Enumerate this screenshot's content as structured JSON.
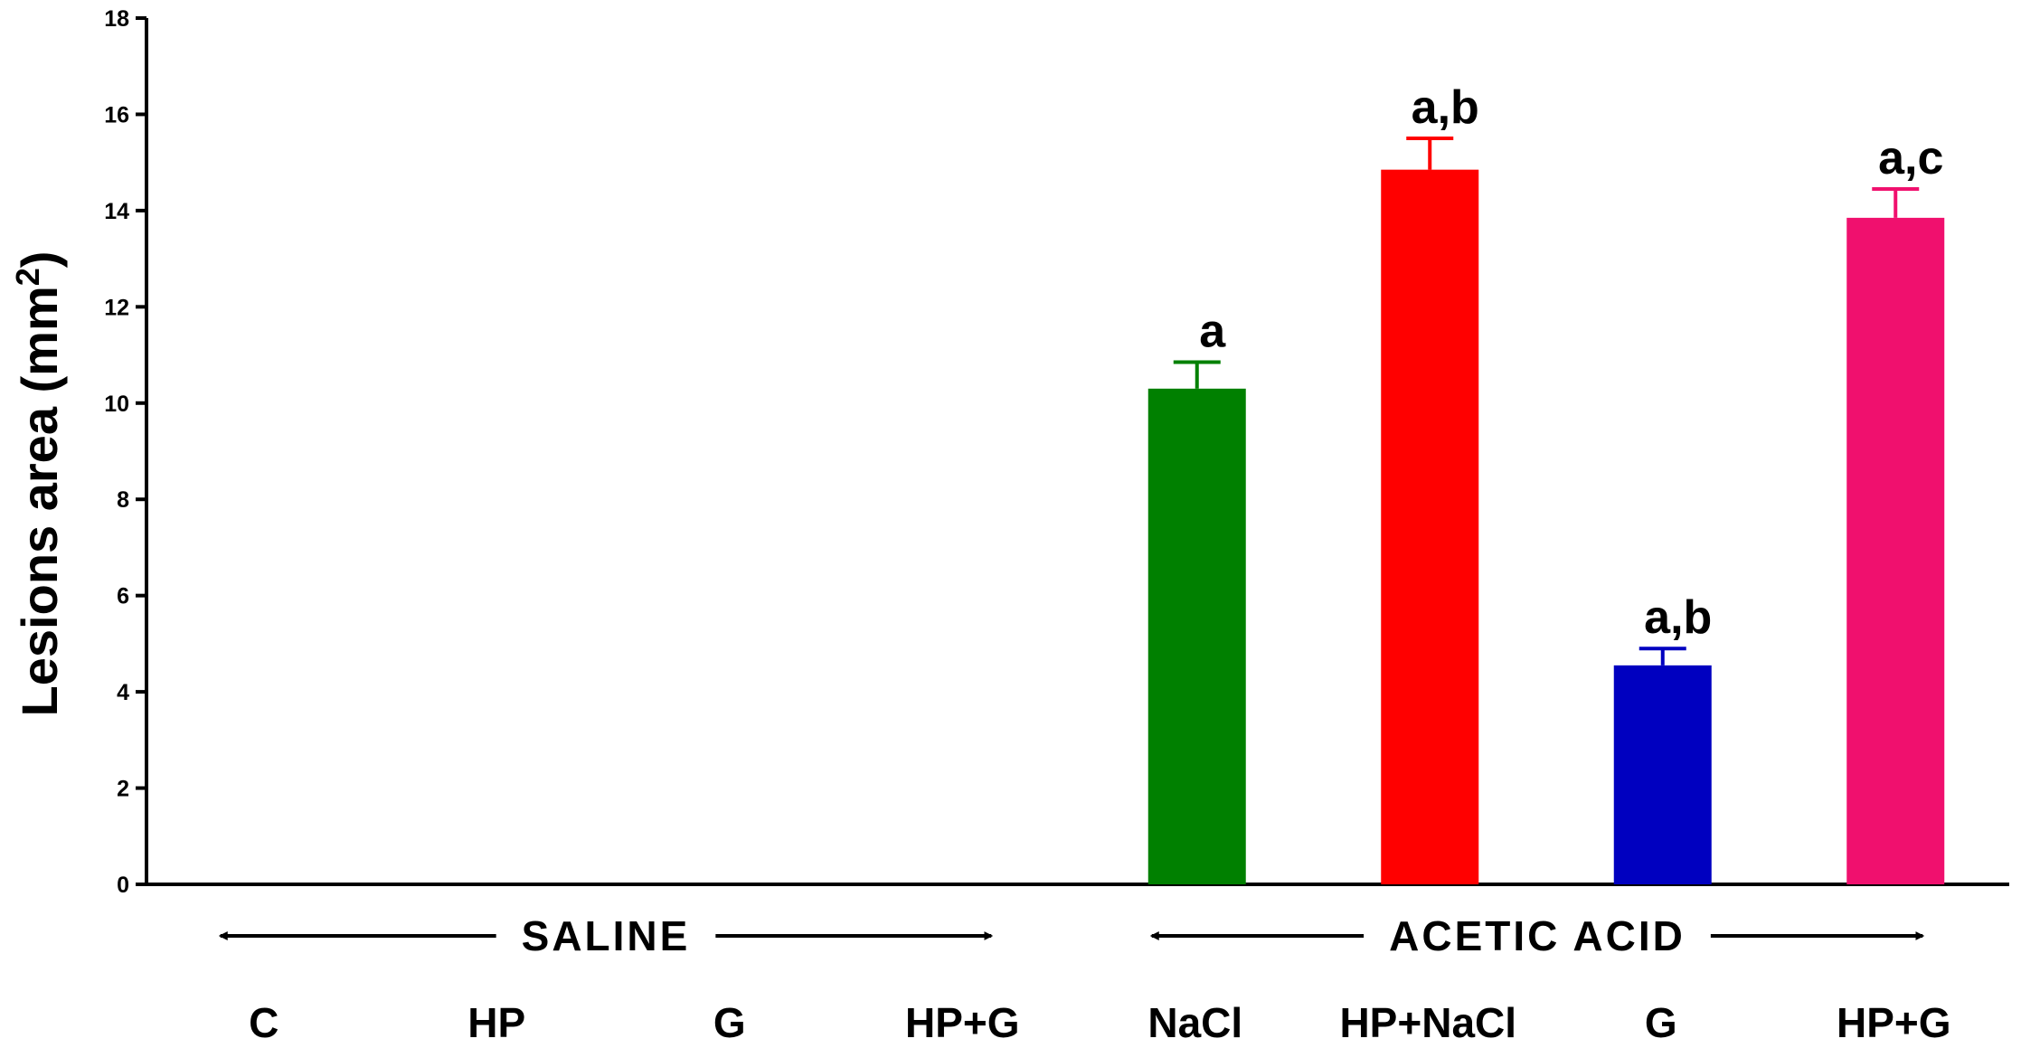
{
  "chart_data": {
    "type": "bar",
    "categories": [
      "C",
      "HP",
      "G",
      "HP+G",
      "NaCl",
      "HP+NaCl",
      "G",
      "HP+G"
    ],
    "values": [
      0,
      0,
      0,
      0,
      10.3,
      14.85,
      4.55,
      13.85
    ],
    "errors": [
      0,
      0,
      0,
      0,
      0.55,
      0.65,
      0.35,
      0.6
    ],
    "bar_colors": [
      "#000000",
      "#000000",
      "#000000",
      "#000000",
      "#008000",
      "#ff0000",
      "#0000c0",
      "#f0106e"
    ],
    "significance": [
      "",
      "",
      "",
      "",
      "a",
      "a,b",
      "a,b",
      "a,c"
    ],
    "ylabel": "Lesions area (mm",
    "ylabel_superscript": "2",
    "ylabel_close": ")",
    "ylim": [
      0,
      18
    ],
    "yticks": [
      0,
      2,
      4,
      6,
      8,
      10,
      12,
      14,
      16,
      18
    ],
    "groups": [
      {
        "label": "SALINE",
        "start": 0,
        "end": 3
      },
      {
        "label": "ACETIC ACID",
        "start": 4,
        "end": 7
      }
    ],
    "grid": false
  }
}
